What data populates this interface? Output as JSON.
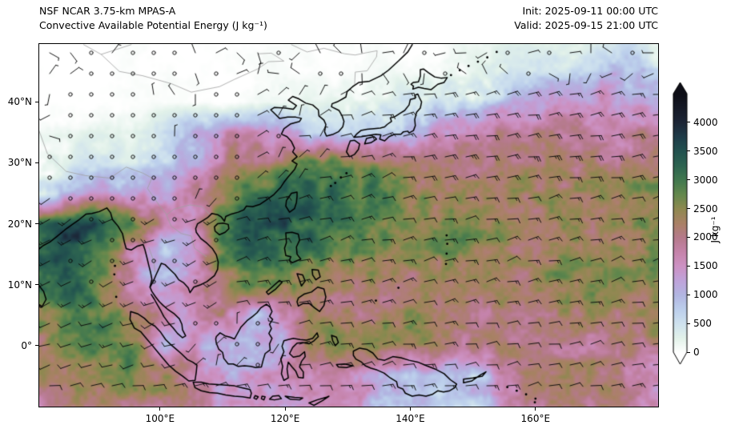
{
  "header": {
    "title_line1": "NSF NCAR 3.75-km MPAS-A",
    "title_line2": "Convective Available Potential Energy (J kg⁻¹)",
    "init_line": "Init: 2025-09-11 00:00 UTC",
    "valid_line": "Valid: 2025-09-15 21:00 UTC"
  },
  "axes": {
    "extent": {
      "lon_min": 80.7,
      "lon_max": 179.6,
      "lat_min": -10.0,
      "lat_max": 49.5
    },
    "x_ticks": [
      {
        "label": "100°E",
        "lon": 100
      },
      {
        "label": "120°E",
        "lon": 120
      },
      {
        "label": "140°E",
        "lon": 140
      },
      {
        "label": "160°E",
        "lon": 160
      }
    ],
    "y_ticks": [
      {
        "label": "0°",
        "lat": 0
      },
      {
        "label": "10°N",
        "lat": 10
      },
      {
        "label": "20°N",
        "lat": 20
      },
      {
        "label": "30°N",
        "lat": 30
      },
      {
        "label": "40°N",
        "lat": 40
      }
    ]
  },
  "colorbar": {
    "unit_label": "J kg⁻¹",
    "vmin": 0,
    "vmax": 4500,
    "extend": "both",
    "tick_values": [
      0,
      500,
      1000,
      1500,
      2000,
      2500,
      3000,
      3500,
      4000
    ],
    "stops": [
      [
        0,
        "#ffffff"
      ],
      [
        250,
        "#e2f2ea"
      ],
      [
        500,
        "#cfe2ee"
      ],
      [
        750,
        "#bccfec"
      ],
      [
        1000,
        "#b2b6e2"
      ],
      [
        1250,
        "#bfa3da"
      ],
      [
        1500,
        "#cd92c4"
      ],
      [
        1750,
        "#c583aa"
      ],
      [
        2000,
        "#b57a8b"
      ],
      [
        2250,
        "#aa8166"
      ],
      [
        2500,
        "#8f8950"
      ],
      [
        2750,
        "#63884c"
      ],
      [
        3000,
        "#41784e"
      ],
      [
        3250,
        "#2d6450"
      ],
      [
        3500,
        "#22524f"
      ],
      [
        3750,
        "#1e3c49"
      ],
      [
        4000,
        "#1c2536"
      ],
      [
        4500,
        "#0d0d16"
      ]
    ]
  },
  "chart_data": {
    "type": "heatmap",
    "title": "Convective Available Potential Energy",
    "units": "J kg⁻¹",
    "model": "NSF NCAR 3.75-km MPAS-A",
    "init_utc": "2025-09-11 00:00",
    "valid_utc": "2025-09-15 21:00",
    "region": "South / East Asia and Western Pacific",
    "overlay": "10 m wind barbs (half barb = 5 kt, full barb = 10 kt); open circles = calm",
    "barb_grid_spacing_px": 26,
    "grid_lons": [
      80,
      85,
      90,
      95,
      100,
      105,
      110,
      115,
      120,
      125,
      130,
      135,
      140,
      145,
      150,
      155,
      160,
      165,
      170,
      175,
      180
    ],
    "grid_lats": [
      50,
      45,
      40,
      35,
      30,
      25,
      20,
      15,
      10,
      5,
      0,
      -5,
      -10
    ],
    "cape_values": [
      [
        0,
        0,
        0,
        0,
        0,
        0,
        0,
        0,
        0,
        0,
        0,
        0,
        0,
        0,
        50,
        100,
        150,
        200,
        250,
        300,
        350
      ],
      [
        0,
        0,
        0,
        0,
        0,
        0,
        0,
        0,
        0,
        0,
        0,
        50,
        100,
        150,
        250,
        350,
        450,
        550,
        650,
        750,
        850
      ],
      [
        0,
        0,
        0,
        0,
        0,
        0,
        0,
        50,
        100,
        150,
        250,
        350,
        450,
        600,
        800,
        1000,
        1150,
        1250,
        1300,
        1300,
        1250
      ],
      [
        100,
        150,
        200,
        250,
        400,
        800,
        1400,
        1600,
        1200,
        600,
        500,
        600,
        900,
        1400,
        1700,
        1900,
        2000,
        2000,
        1900,
        1800,
        1700
      ],
      [
        300,
        350,
        400,
        450,
        600,
        1200,
        1600,
        1900,
        2400,
        2800,
        2600,
        2200,
        2000,
        2000,
        2100,
        2200,
        2200,
        2200,
        2100,
        2000,
        1900
      ],
      [
        800,
        900,
        1100,
        1300,
        1500,
        1700,
        2000,
        2600,
        3000,
        3200,
        3000,
        2600,
        2400,
        2300,
        2300,
        2400,
        2400,
        2400,
        2300,
        2300,
        2200
      ],
      [
        2800,
        3300,
        3400,
        2800,
        2000,
        1800,
        2700,
        3500,
        3600,
        3200,
        2800,
        2500,
        2400,
        2400,
        2400,
        2500,
        2500,
        2400,
        2400,
        2300,
        2300
      ],
      [
        3000,
        3400,
        2600,
        1600,
        800,
        1400,
        2800,
        3600,
        3200,
        2900,
        2600,
        2400,
        2300,
        2400,
        2500,
        2600,
        2500,
        2500,
        2400,
        2400,
        2300
      ],
      [
        2800,
        3000,
        2400,
        1600,
        700,
        1000,
        2600,
        3200,
        2800,
        2600,
        2400,
        2300,
        2300,
        2400,
        2500,
        2500,
        2400,
        2400,
        2300,
        2300,
        2200
      ],
      [
        2600,
        2800,
        2600,
        2200,
        1700,
        1500,
        2200,
        1200,
        1900,
        2200,
        2000,
        2100,
        2200,
        2300,
        2200,
        2200,
        2300,
        2200,
        2200,
        2100,
        2100
      ],
      [
        2400,
        2600,
        2700,
        2600,
        1000,
        1500,
        1100,
        1100,
        1400,
        2200,
        2400,
        2300,
        2100,
        2000,
        2000,
        2100,
        2000,
        2000,
        1900,
        1900,
        1900
      ],
      [
        2200,
        2300,
        2400,
        2300,
        2000,
        1600,
        1600,
        1500,
        1400,
        1600,
        1500,
        800,
        600,
        500,
        800,
        1400,
        1800,
        1900,
        1900,
        1900,
        1800
      ],
      [
        2000,
        2100,
        2200,
        2100,
        1900,
        1700,
        1500,
        1500,
        1400,
        1500,
        1400,
        1200,
        800,
        600,
        900,
        1500,
        1800,
        1900,
        1900,
        1800,
        1800
      ]
    ]
  }
}
